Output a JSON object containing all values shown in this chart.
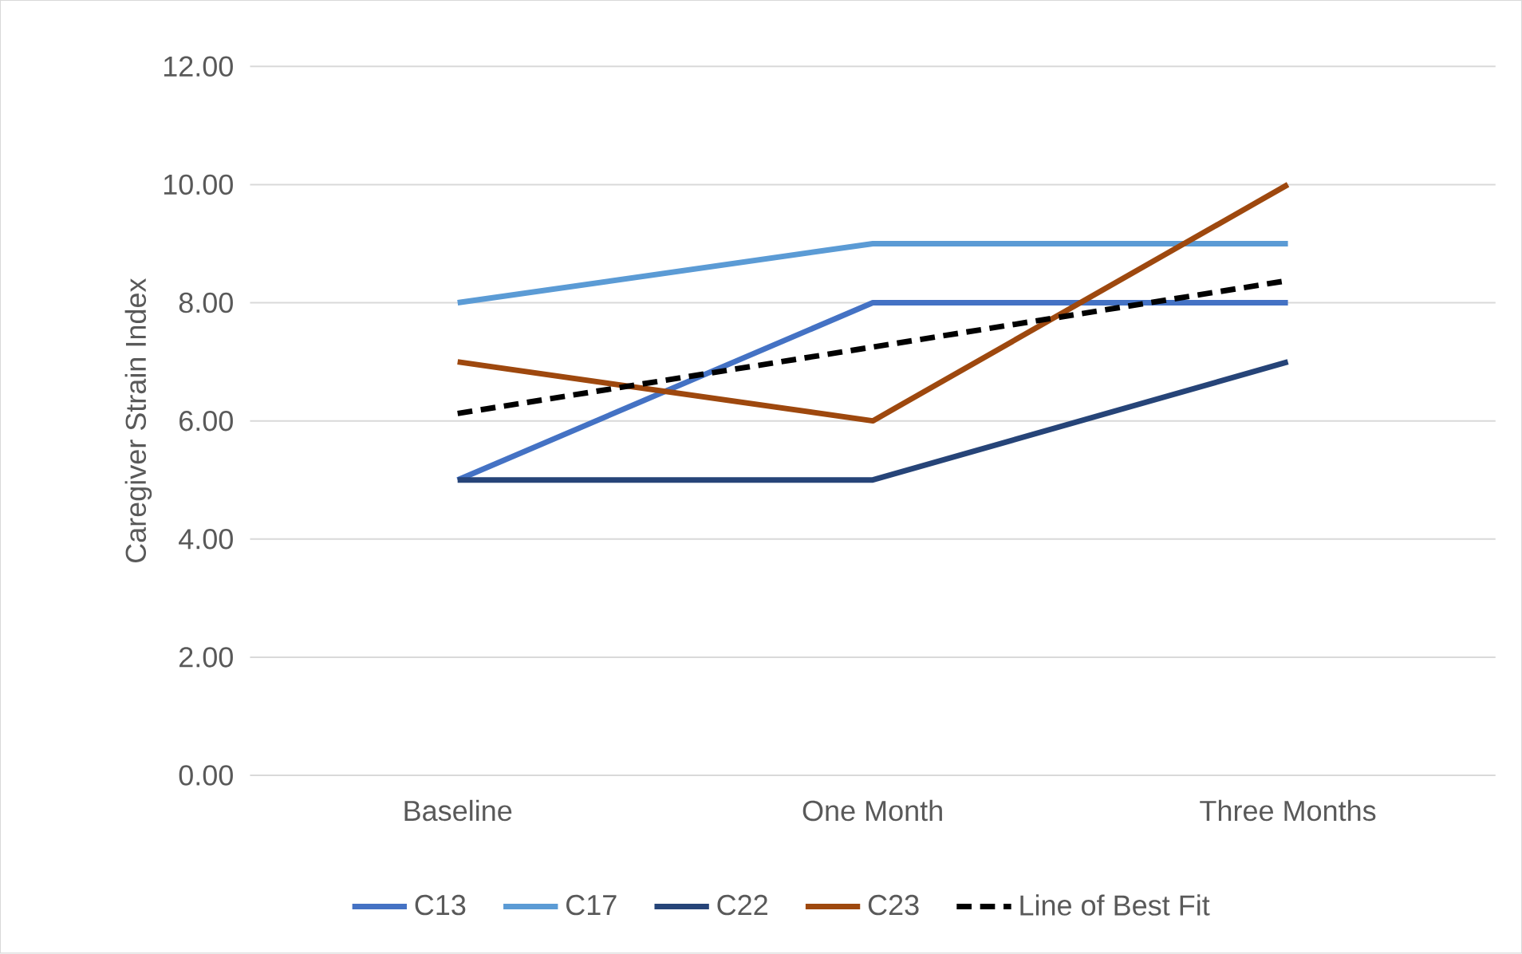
{
  "chart_data": {
    "type": "line",
    "ylabel": "Caregiver Strain Index",
    "categories": [
      "Baseline",
      "One Month",
      "Three Months"
    ],
    "series": [
      {
        "name": "C13",
        "color": "#4472c4",
        "values": [
          5,
          8,
          8
        ]
      },
      {
        "name": "C17",
        "color": "#5b9bd5",
        "values": [
          8,
          9,
          9
        ]
      },
      {
        "name": "C22",
        "color": "#264478",
        "values": [
          5,
          5,
          7
        ]
      },
      {
        "name": "C23",
        "color": "#9e480e",
        "values": [
          7,
          6,
          10
        ]
      },
      {
        "name": "Line of Best Fit",
        "color": "#000000",
        "values": [
          6.125,
          7.25,
          8.375
        ],
        "line_style": "dashed"
      }
    ],
    "ylim": [
      0,
      12
    ],
    "yticks": [
      {
        "value": 0,
        "label": "0.00"
      },
      {
        "value": 2,
        "label": "2.00"
      },
      {
        "value": 4,
        "label": "4.00"
      },
      {
        "value": 6,
        "label": "6.00"
      },
      {
        "value": 8,
        "label": "8.00"
      },
      {
        "value": 10,
        "label": "10.00"
      },
      {
        "value": 12,
        "label": "12.00"
      }
    ],
    "grid": "y",
    "legend": "bottom"
  }
}
